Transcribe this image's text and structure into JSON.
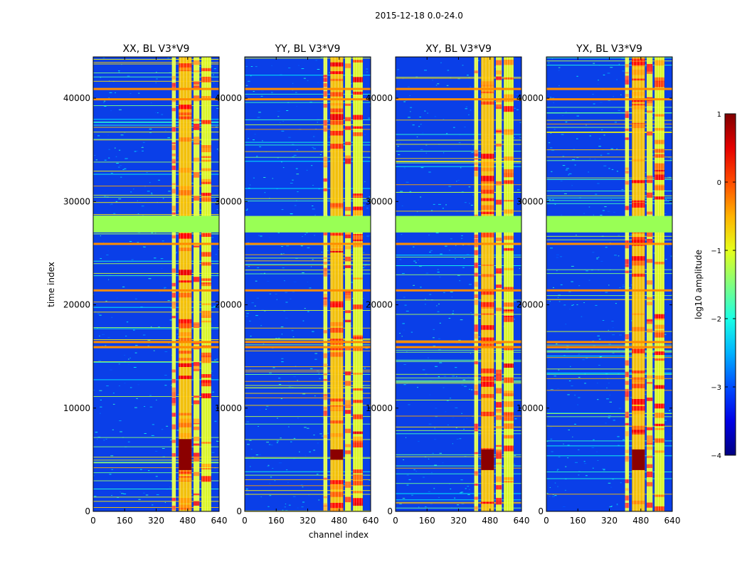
{
  "figure": {
    "suptitle": "2015-12-18 0.0-24.0",
    "xlabel": "channel index",
    "ylabel": "time index"
  },
  "chart_data": {
    "type": "heatmap",
    "x_range": [
      0,
      640
    ],
    "y_range": [
      0,
      44000
    ],
    "x_ticks": [
      0,
      160,
      320,
      480,
      640
    ],
    "y_ticks": [
      0,
      10000,
      20000,
      30000,
      40000
    ],
    "x_tick_labels": [
      "0",
      "160",
      "320",
      "480",
      "640"
    ],
    "y_tick_labels": [
      "0",
      "10000",
      "20000",
      "30000",
      "40000"
    ],
    "panels": [
      {
        "title": "XX, BL V3*V9",
        "bright_band_y": [
          7000,
          4000
        ]
      },
      {
        "title": "YY, BL V3*V9",
        "bright_band_y": [
          6000,
          5000
        ]
      },
      {
        "title": "XY, BL V3*V9",
        "bright_band_y": [
          6000,
          4000
        ]
      },
      {
        "title": "YX, BL V3*V9",
        "bright_band_y": [
          6000,
          4000
        ]
      }
    ],
    "flagged_rows_y": [
      27000,
      28600
    ],
    "strong_rows_y": [
      40000,
      41000,
      16000,
      16500,
      26000,
      21500
    ],
    "hot_channel_ranges": [
      [
        400,
        420
      ],
      [
        435,
        500
      ],
      [
        510,
        540
      ],
      [
        550,
        600
      ]
    ],
    "colorbar": {
      "label": "log10 amplitude",
      "range": [
        -4,
        1
      ],
      "ticks": [
        1,
        0,
        -1,
        -2,
        -3,
        -4
      ],
      "tick_labels": [
        "1",
        "0",
        "−1",
        "−2",
        "−3",
        "−4"
      ],
      "colormap": "jet"
    },
    "colors": {
      "low": "#0000ff",
      "background": "#0a3fe8",
      "flagged": "#99ff55",
      "stripe_hot": "#ff8c00",
      "peak": "#8b0000"
    }
  }
}
